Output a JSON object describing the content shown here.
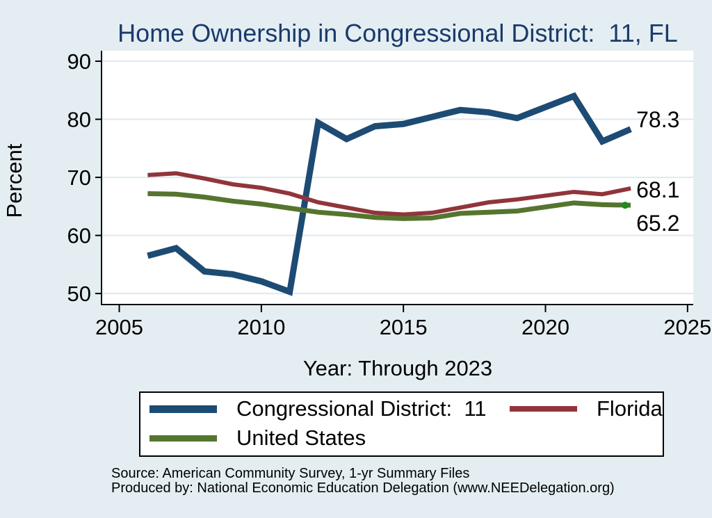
{
  "title": "Home Ownership in Congressional District:  11, FL",
  "chart_data": {
    "type": "line",
    "title": "Home Ownership in Congressional District:  11, FL",
    "xlabel": "Year: Through 2023",
    "ylabel": "Percent",
    "x": [
      2006,
      2007,
      2008,
      2009,
      2010,
      2011,
      2012,
      2013,
      2014,
      2015,
      2016,
      2017,
      2018,
      2019,
      2021,
      2022,
      2023
    ],
    "x_note": "no 2020 observation; line drawn straight from 2019 to 2021",
    "series": [
      {
        "name": "Congressional District:  11",
        "color": "#1d4b73",
        "line_width": 9,
        "values": [
          56.5,
          57.8,
          53.8,
          53.3,
          52.1,
          50.3,
          79.4,
          76.6,
          78.8,
          79.2,
          80.4,
          81.6,
          81.2,
          80.2,
          84.0,
          76.2,
          78.3
        ]
      },
      {
        "name": "Florida",
        "color": "#90353b",
        "line_width": 6,
        "values": [
          70.4,
          70.7,
          69.8,
          68.8,
          68.2,
          67.2,
          65.7,
          64.8,
          63.9,
          63.6,
          63.9,
          64.8,
          65.7,
          66.2,
          67.5,
          67.1,
          68.1
        ]
      },
      {
        "name": "United States",
        "color": "#55752f",
        "line_width": 7,
        "values": [
          67.2,
          67.1,
          66.6,
          65.9,
          65.4,
          64.7,
          64.0,
          63.6,
          63.1,
          62.9,
          63.0,
          63.8,
          64.0,
          64.2,
          65.6,
          65.3,
          65.2
        ],
        "end_marker_color": "#1f8a1f"
      }
    ],
    "end_labels": [
      "78.3",
      "68.1",
      "65.2"
    ],
    "y_ticks": [
      50,
      60,
      70,
      80,
      90
    ],
    "x_ticks": [
      2005,
      2010,
      2015,
      2020,
      2025
    ],
    "ylim": [
      48.1,
      91.8
    ],
    "xlim": [
      2004.4,
      2025.2
    ],
    "grid": "horizontal",
    "legend_position": "bottom"
  },
  "legend": {
    "items": [
      {
        "label": "Congressional District:  11"
      },
      {
        "label": "Florida"
      },
      {
        "label": "United States"
      }
    ]
  },
  "source_line1": "Source: American Community Survey, 1-yr Summary Files",
  "source_line2": "Produced by: National Economic Education Delegation (www.NEEDelegation.org)",
  "colors": {
    "page_background": "#e4eef2",
    "plot_background": "#ffffff",
    "grid_line": "#dde9f2",
    "axis": "#000000",
    "title_text": "#1b3a6b",
    "label_text": "#000000"
  }
}
